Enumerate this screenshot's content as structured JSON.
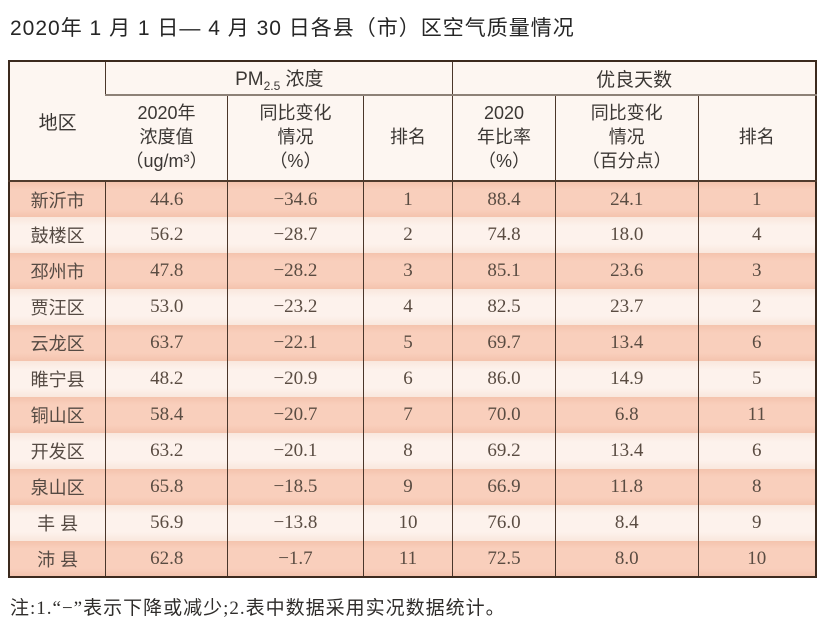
{
  "title": "2020年 1 月 1 日— 4 月 30 日各县（市）区空气质量情况",
  "table": {
    "region_header": "地区",
    "pm_group": {
      "prefix": "PM",
      "sub": "2.5",
      "suffix": " 浓度"
    },
    "good_days_group": "优良天数",
    "columns": [
      "2020年\n浓度值\n（ug/m³）",
      "同比变化\n情况\n（%）",
      "排名",
      "2020\n年比率\n（%）",
      "同比变化\n情况\n（百分点）",
      "排名"
    ],
    "rows": [
      [
        "新沂市",
        "44.6",
        "−34.6",
        "1",
        "88.4",
        "24.1",
        "1"
      ],
      [
        "鼓楼区",
        "56.2",
        "−28.7",
        "2",
        "74.8",
        "18.0",
        "4"
      ],
      [
        "邳州市",
        "47.8",
        "−28.2",
        "3",
        "85.1",
        "23.6",
        "3"
      ],
      [
        "贾汪区",
        "53.0",
        "−23.2",
        "4",
        "82.5",
        "23.7",
        "2"
      ],
      [
        "云龙区",
        "63.7",
        "−22.1",
        "5",
        "69.7",
        "13.4",
        "6"
      ],
      [
        "睢宁县",
        "48.2",
        "−20.9",
        "6",
        "86.0",
        "14.9",
        "5"
      ],
      [
        "铜山区",
        "58.4",
        "−20.7",
        "7",
        "70.0",
        "6.8",
        "11"
      ],
      [
        "开发区",
        "63.2",
        "−20.1",
        "8",
        "69.2",
        "13.4",
        "6"
      ],
      [
        "泉山区",
        "65.8",
        "−18.5",
        "9",
        "66.9",
        "11.8",
        "8"
      ],
      [
        "丰 县",
        "56.9",
        "−13.8",
        "10",
        "76.0",
        "8.4",
        "9"
      ],
      [
        "沛 县",
        "62.8",
        "−1.7",
        "11",
        "72.5",
        "8.0",
        "10"
      ]
    ]
  },
  "footnote": "注:1.“−”表示下降或减少;2.表中数据采用实况数据统计。",
  "colors": {
    "band_dark": "#f8ccb8",
    "band_light": "#fbf0e9",
    "header_bg": "#fdf6f1",
    "border_outer": "#3c2a1e",
    "border_inner": "#4a362a",
    "header_divider": "#8d8177"
  }
}
